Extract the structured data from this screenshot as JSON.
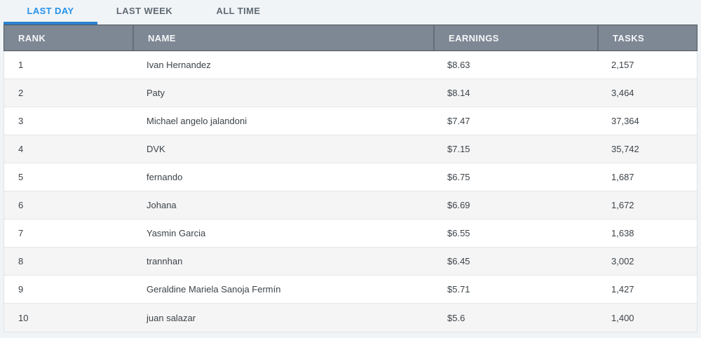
{
  "tabs": [
    {
      "label": "LAST DAY",
      "active": true
    },
    {
      "label": "LAST WEEK",
      "active": false
    },
    {
      "label": "ALL TIME",
      "active": false
    }
  ],
  "table": {
    "columns": [
      "RANK",
      "NAME",
      "EARNINGS",
      "TASKS"
    ],
    "rows": [
      {
        "rank": "1",
        "name": "Ivan Hernandez",
        "earnings": "$8.63",
        "tasks": "2,157"
      },
      {
        "rank": "2",
        "name": "Paty",
        "earnings": "$8.14",
        "tasks": "3,464"
      },
      {
        "rank": "3",
        "name": "Michael angelo jalandoni",
        "earnings": "$7.47",
        "tasks": "37,364"
      },
      {
        "rank": "4",
        "name": "DVK",
        "earnings": "$7.15",
        "tasks": "35,742"
      },
      {
        "rank": "5",
        "name": "fernando",
        "earnings": "$6.75",
        "tasks": "1,687"
      },
      {
        "rank": "6",
        "name": "Johana",
        "earnings": "$6.69",
        "tasks": "1,672"
      },
      {
        "rank": "7",
        "name": "Yasmin Garcia",
        "earnings": "$6.55",
        "tasks": "1,638"
      },
      {
        "rank": "8",
        "name": "trannhan",
        "earnings": "$6.45",
        "tasks": "3,002"
      },
      {
        "rank": "9",
        "name": "Geraldine Mariela Sanoja Fermín",
        "earnings": "$5.71",
        "tasks": "1,427"
      },
      {
        "rank": "10",
        "name": "juan salazar",
        "earnings": "$5.6",
        "tasks": "1,400"
      }
    ]
  },
  "colors": {
    "accent": "#2492ea",
    "tab_indicator": "#2b82cf",
    "header_background": "#7e8894",
    "header_border": "#4e565e",
    "page_background": "#f1f4f7",
    "row_alternate": "#f5f5f5",
    "body_text": "#3d4349"
  }
}
